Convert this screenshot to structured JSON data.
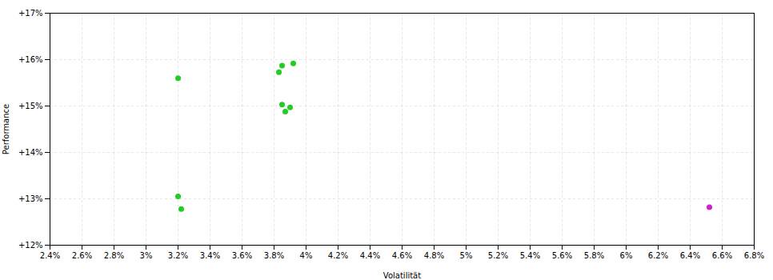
{
  "chart_data": {
    "type": "scatter",
    "xlabel": "Volatilität",
    "ylabel": "Performance",
    "xlim": [
      0.024,
      0.068
    ],
    "ylim": [
      0.12,
      0.17
    ],
    "xticks": [
      {
        "value": 0.024,
        "label": "2.4%"
      },
      {
        "value": 0.026,
        "label": "2.6%"
      },
      {
        "value": 0.028,
        "label": "2.8%"
      },
      {
        "value": 0.03,
        "label": "3%"
      },
      {
        "value": 0.032,
        "label": "3.2%"
      },
      {
        "value": 0.034,
        "label": "3.4%"
      },
      {
        "value": 0.036,
        "label": "3.6%"
      },
      {
        "value": 0.038,
        "label": "3.8%"
      },
      {
        "value": 0.04,
        "label": "4%"
      },
      {
        "value": 0.042,
        "label": "4.2%"
      },
      {
        "value": 0.044,
        "label": "4.4%"
      },
      {
        "value": 0.046,
        "label": "4.6%"
      },
      {
        "value": 0.048,
        "label": "4.8%"
      },
      {
        "value": 0.05,
        "label": "5%"
      },
      {
        "value": 0.052,
        "label": "5.2%"
      },
      {
        "value": 0.054,
        "label": "5.4%"
      },
      {
        "value": 0.056,
        "label": "5.6%"
      },
      {
        "value": 0.058,
        "label": "5.8%"
      },
      {
        "value": 0.06,
        "label": "6%"
      },
      {
        "value": 0.062,
        "label": "6.2%"
      },
      {
        "value": 0.064,
        "label": "6.4%"
      },
      {
        "value": 0.066,
        "label": "6.6%"
      },
      {
        "value": 0.068,
        "label": "6.8%"
      }
    ],
    "yticks": [
      {
        "value": 0.12,
        "label": "+12%"
      },
      {
        "value": 0.13,
        "label": "+13%"
      },
      {
        "value": 0.14,
        "label": "+14%"
      },
      {
        "value": 0.15,
        "label": "+15%"
      },
      {
        "value": 0.16,
        "label": "+16%"
      },
      {
        "value": 0.17,
        "label": "+17%"
      }
    ],
    "grid": true,
    "series": [
      {
        "color": "#22cc22",
        "x": [
          0.032,
          0.0385,
          0.0392,
          0.0383,
          0.0385,
          0.039,
          0.0387,
          0.032,
          0.0322
        ],
        "y": [
          0.156,
          0.1587,
          0.1592,
          0.1573,
          0.1503,
          0.1497,
          0.1488,
          0.1305,
          0.1278
        ]
      },
      {
        "color": "#cc22cc",
        "x": [
          0.0652
        ],
        "y": [
          0.1282
        ]
      }
    ]
  }
}
